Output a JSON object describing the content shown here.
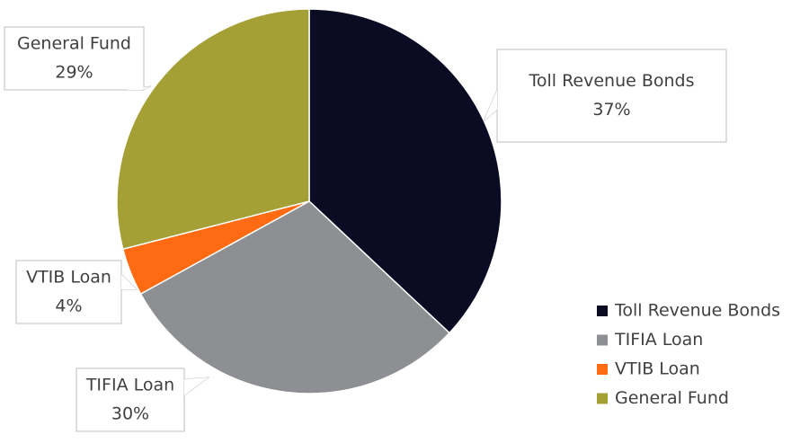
{
  "chart_data": {
    "type": "pie",
    "categories": [
      "Toll Revenue Bonds",
      "TIFIA Loan",
      "VTIB Loan",
      "General Fund"
    ],
    "values": [
      37,
      30,
      4,
      29
    ],
    "value_labels": [
      "37%",
      "30%",
      "4%",
      "29%"
    ],
    "colors": [
      "#0b0b24",
      "#8e8f93",
      "#ff6a13",
      "#a5a035"
    ],
    "legend": "right"
  }
}
